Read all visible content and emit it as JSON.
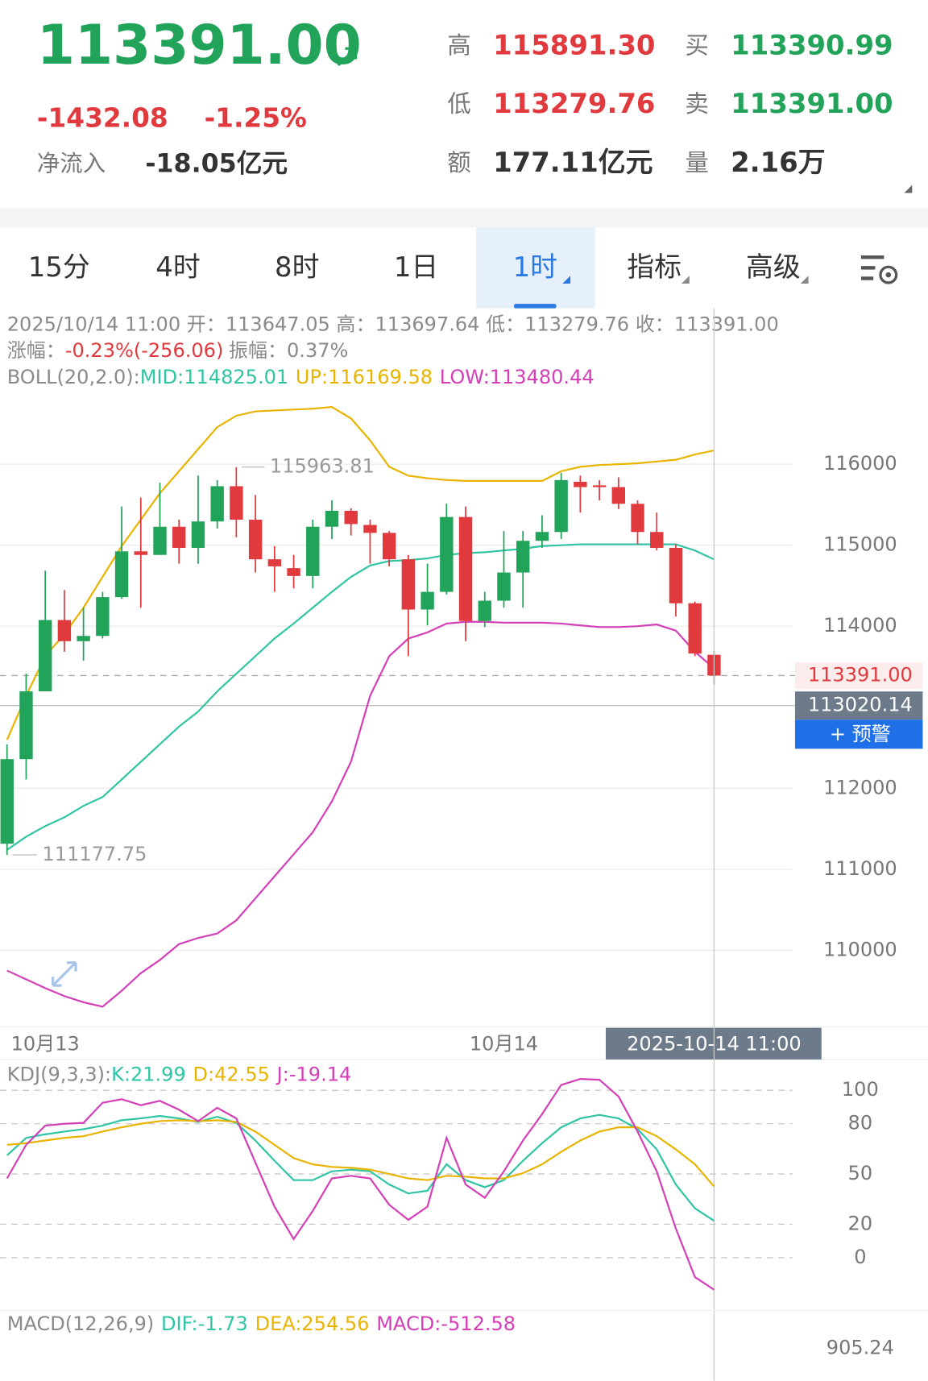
{
  "header": {
    "price": "113391.00",
    "change": "-1432.08",
    "change_pct": "-1.25%",
    "net_inflow_label": "净流入",
    "net_inflow": "-18.05亿元",
    "stats": [
      {
        "label": "高",
        "value": "115891.30",
        "tone": "up"
      },
      {
        "label": "买",
        "value": "113390.99",
        "tone": "down"
      },
      {
        "label": "低",
        "value": "113279.76",
        "tone": "up"
      },
      {
        "label": "卖",
        "value": "113391.00",
        "tone": "down"
      },
      {
        "label": "额",
        "value": "177.11亿元",
        "tone": "plain"
      },
      {
        "label": "量",
        "value": "2.16万",
        "tone": "plain"
      }
    ]
  },
  "tabs": [
    {
      "label": "15分"
    },
    {
      "label": "4时"
    },
    {
      "label": "8时"
    },
    {
      "label": "1日"
    },
    {
      "label": "1时",
      "selected": true,
      "dropdown": true
    },
    {
      "label": "指标",
      "dropdown": true
    },
    {
      "label": "高级",
      "dropdown": true
    }
  ],
  "info": {
    "line1": "2025/10/14 11:00 开：113647.05 高：113697.64 低：113279.76 收：113391.00",
    "change_label": "涨幅：",
    "change": "-0.23%(-256.06)",
    "amplitude": "振幅：0.37%"
  },
  "chart_data": [
    {
      "type": "candlestick",
      "indicator": "BOLL(20,2.0):",
      "categories": [
        null,
        null,
        "10月13",
        null,
        null,
        null,
        null,
        null,
        null,
        null,
        null,
        null,
        null,
        null,
        null,
        null,
        null,
        null,
        null,
        null,
        null,
        null,
        null,
        null,
        null,
        null,
        "10月14",
        null,
        null,
        null,
        null,
        null,
        null,
        null,
        null,
        null,
        null,
        null
      ],
      "open": [
        111315,
        112359,
        113196,
        114076,
        113815,
        113880,
        114359,
        114924,
        114880,
        115228,
        114967,
        115293,
        115728,
        115315,
        114826,
        114717,
        114620,
        115228,
        115424,
        115250,
        115152,
        114826,
        114206,
        114424,
        115348,
        114065,
        114315,
        114663,
        115054,
        115163,
        115783,
        115739,
        115717,
        115511,
        115163,
        114967,
        114283,
        113647.05
      ],
      "high": [
        112543,
        113413,
        114685,
        114446,
        114228,
        114424,
        115478,
        115587,
        115772,
        115315,
        115859,
        115804,
        115963.81,
        115620,
        114989,
        114880,
        115315,
        115554,
        115456,
        115315,
        115174,
        114880,
        114772,
        115511,
        115478,
        114424,
        115174,
        115174,
        115370,
        115891.3,
        115859,
        115804,
        115837,
        115554,
        115402,
        115011,
        114304,
        113697.64
      ],
      "low": [
        111177.75,
        112109,
        113196,
        113685,
        113576,
        113848,
        114337,
        114228,
        114880,
        114772,
        114772,
        115206,
        115098,
        114663,
        114424,
        114467,
        114467,
        115076,
        115120,
        114772,
        114739,
        113630,
        114011,
        114391,
        113815,
        113989,
        114228,
        114228,
        114967,
        115076,
        115402,
        115554,
        115446,
        115011,
        114935,
        114120,
        113630,
        113279.76
      ],
      "close": [
        112359,
        113196,
        114076,
        113815,
        113880,
        114359,
        114924,
        114880,
        115228,
        114967,
        115293,
        115728,
        115315,
        114826,
        114739,
        114620,
        115228,
        115424,
        115261,
        115152,
        114826,
        114206,
        114424,
        115348,
        114065,
        114315,
        114663,
        115054,
        115163,
        115804,
        115717,
        115717,
        115511,
        115163,
        114967,
        114283,
        113663,
        113391.0
      ],
      "up_color": "#e0393e",
      "down_color": "#22a35a",
      "series": [
        {
          "name": "MID:114825.01",
          "color": "#2fc4a4",
          "values": [
            111239,
            111402,
            111532,
            111641,
            111782,
            111891,
            112109,
            112326,
            112543,
            112761,
            112946,
            113196,
            113413,
            113630,
            113848,
            114033,
            114228,
            114424,
            114609,
            114750,
            114804,
            114815,
            114837,
            114880,
            114902,
            114913,
            114935,
            114957,
            114989,
            115000,
            115011,
            115011,
            115011,
            115011,
            115011,
            115011,
            114935,
            114825.01
          ]
        },
        {
          "name": "UP:116169.58",
          "color": "#e8b400",
          "values": [
            112598,
            113141,
            113630,
            113902,
            114228,
            114609,
            114989,
            115315,
            115641,
            115913,
            116185,
            116457,
            116598,
            116652,
            116663,
            116674,
            116685,
            116707,
            116565,
            116293,
            115967,
            115859,
            115826,
            115804,
            115793,
            115793,
            115793,
            115793,
            115793,
            115913,
            115967,
            115989,
            116000,
            116011,
            116033,
            116054,
            116120,
            116169.58
          ]
        },
        {
          "name": "LOW:113480.44",
          "color": "#d43fb7",
          "values": [
            109750,
            109641,
            109532,
            109435,
            109358,
            109304,
            109500,
            109717,
            109880,
            110076,
            110152,
            110206,
            110369,
            110641,
            110913,
            111185,
            111456,
            111837,
            112326,
            113141,
            113630,
            113848,
            113924,
            114033,
            114054,
            114054,
            114043,
            114043,
            114043,
            114033,
            114011,
            113989,
            113989,
            114000,
            114022,
            113946,
            113685,
            113480.44
          ]
        }
      ],
      "ylim": [
        109065,
        116837
      ],
      "yticks": [
        110000,
        111000,
        112000,
        114000,
        115000,
        116000
      ],
      "grid": true,
      "last_price_label": "113391.00",
      "crosshair_price": 113020.14,
      "crosshair_time": "2025-10-14 11:00",
      "alert_button": "+ 预警"
    },
    {
      "type": "line",
      "title": "KDJ(9,3,3):",
      "series": [
        {
          "name": "K:21.99",
          "color": "#2fc4a4",
          "values": [
            61.1,
            71.6,
            73.7,
            75.3,
            76.8,
            78.9,
            82.1,
            83.2,
            84.7,
            83.2,
            81.1,
            84.2,
            80.5,
            70,
            57.9,
            46.3,
            46.3,
            51.6,
            52.6,
            51.6,
            43.7,
            38.4,
            40,
            55.8,
            46.3,
            42.1,
            46.3,
            57.9,
            68.4,
            77.9,
            83.2,
            85.3,
            83.2,
            76.8,
            64.7,
            43.7,
            29.5,
            21.99
          ]
        },
        {
          "name": "D:42.55",
          "color": "#e8b400",
          "values": [
            67.4,
            68.4,
            70,
            71.6,
            72.6,
            75.3,
            77.9,
            80,
            81.6,
            82.1,
            81.6,
            82.1,
            81.1,
            75.3,
            67.4,
            59.5,
            55.8,
            54.2,
            53.7,
            52.6,
            50,
            47.4,
            46.3,
            48.9,
            48.4,
            47.4,
            47.4,
            50.5,
            55.8,
            63.2,
            70,
            75.3,
            77.9,
            77.9,
            72.6,
            64.7,
            55.8,
            42.55
          ]
        },
        {
          "name": "J:-19.14",
          "color": "#d43fb7",
          "values": [
            47.4,
            67.4,
            78.9,
            80,
            80.5,
            92.6,
            94.7,
            91.1,
            93.7,
            88.4,
            81.6,
            89.5,
            83.2,
            56.8,
            30.5,
            11.1,
            27.9,
            47.4,
            48.9,
            47.4,
            31.6,
            22.6,
            30.5,
            71.6,
            43.7,
            35.8,
            51.6,
            70,
            85.8,
            103.2,
            106.8,
            106.3,
            96.3,
            75.3,
            51.6,
            17.4,
            -11.6,
            -19.14
          ]
        }
      ],
      "ylim": [
        -32.6,
        114.2
      ],
      "yticks": [
        0,
        20,
        50,
        80,
        100
      ],
      "grid": true
    }
  ],
  "macd": {
    "title": "MACD(12,26,9)",
    "legend": [
      {
        "text": "DIF:-1.73",
        "color": "#2fc4a4"
      },
      {
        "text": "DEA:254.56",
        "color": "#e8b400"
      },
      {
        "text": "MACD:-512.58",
        "color": "#d43fb7"
      }
    ],
    "top_label": "905.24"
  }
}
